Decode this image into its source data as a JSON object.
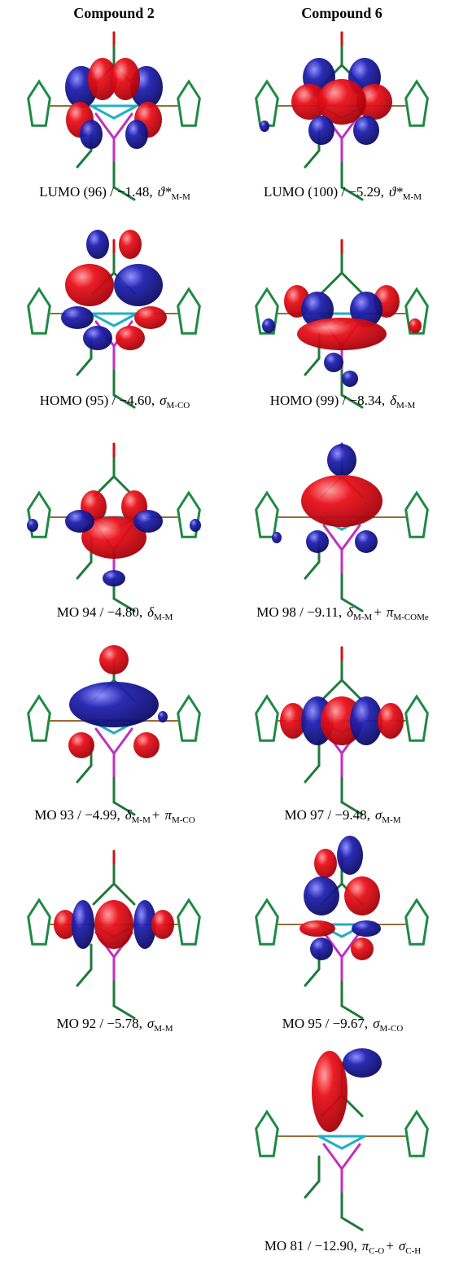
{
  "columns": [
    {
      "header": "Compound 2",
      "panels": [
        {
          "caption": [
            "LUMO (96) / −1.48,",
            {
              "text": "ϑ*",
              "style": "italic"
            },
            {
              "text": "M-M",
              "style": "sub"
            }
          ]
        },
        {
          "caption": [
            "HOMO (95) / −4.60,",
            {
              "text": "σ",
              "style": "italic"
            },
            {
              "text": "M-CO",
              "style": "sub"
            }
          ]
        },
        {
          "caption": [
            "MO 94 / −4.80,",
            {
              "text": "δ",
              "style": "italic"
            },
            {
              "text": "M-M",
              "style": "sub"
            }
          ]
        },
        {
          "caption": [
            "MO 93 / −4.99,",
            {
              "text": "δ",
              "style": "italic"
            },
            {
              "text": "M-M",
              "style": "sub"
            },
            "+",
            {
              "text": "π",
              "style": "italic"
            },
            {
              "text": "M-CO",
              "style": "sub"
            }
          ]
        },
        {
          "caption": [
            "MO 92 / −5.78,",
            {
              "text": "σ",
              "style": "italic"
            },
            {
              "text": "M-M",
              "style": "sub"
            }
          ]
        }
      ]
    },
    {
      "header": "Compound 6",
      "panels": [
        {
          "caption": [
            "LUMO (100) / −5.29,",
            {
              "text": "ϑ*",
              "style": "italic"
            },
            {
              "text": "M-M",
              "style": "sub"
            }
          ]
        },
        {
          "caption": [
            "HOMO (99) / −8.34,",
            {
              "text": "δ",
              "style": "italic"
            },
            {
              "text": "M-M",
              "style": "sub"
            }
          ]
        },
        {
          "caption": [
            "MO 98 / −9.11,",
            {
              "text": "δ",
              "style": "italic"
            },
            {
              "text": "M-M",
              "style": "sub"
            },
            "+",
            {
              "text": "π",
              "style": "italic"
            },
            {
              "text": "M-COMe",
              "style": "sub"
            }
          ]
        },
        {
          "caption": [
            "MO 97 / −9.48,",
            {
              "text": "σ",
              "style": "italic"
            },
            {
              "text": "M-M",
              "style": "sub"
            }
          ]
        },
        {
          "caption": [
            "MO 95 / −9.67,",
            {
              "text": "σ",
              "style": "italic"
            },
            {
              "text": "M-CO",
              "style": "sub"
            }
          ]
        },
        {
          "caption": [
            "MO 81 / −12.90,",
            {
              "text": "π",
              "style": "italic"
            },
            {
              "text": "C-O",
              "style": "sub"
            },
            "+",
            {
              "text": "σ",
              "style": "italic"
            },
            {
              "text": "C-H",
              "style": "sub"
            }
          ]
        }
      ]
    }
  ]
}
